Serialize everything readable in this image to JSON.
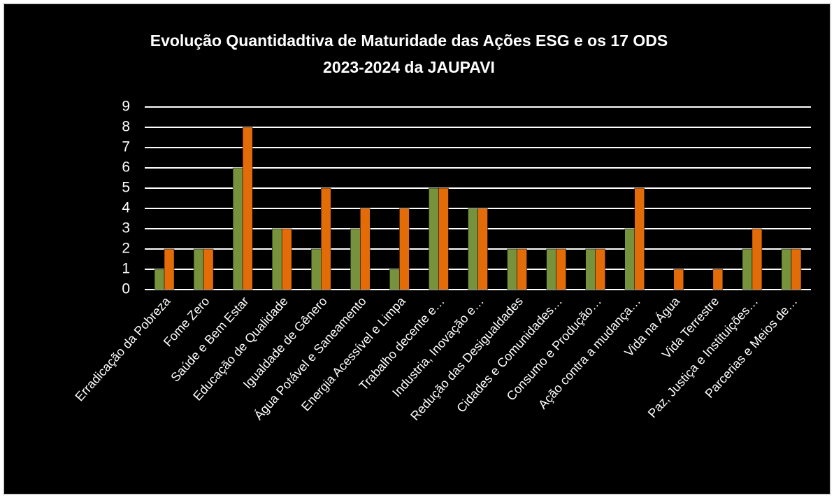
{
  "chart_data": {
    "type": "bar",
    "title": [
      "Evolução Quantidadtiva de Maturidade das Ações ESG e os 17 ODS",
      "2023-2024 da JAUPAVI"
    ],
    "categories": [
      "Erradicação da Pobreza",
      "Fome Zero",
      "Saúde e Bem Estar",
      "Educação de Qualidade",
      "Igualdade de Gênero",
      "Água Potável e Saneamento",
      "Energia Acessível e Limpa",
      "Trabalho decente e…",
      "Industria, Inovação e…",
      "Redução das Desigualdades",
      "Cidades e Comunidades…",
      "Consumo e Produção…",
      "Ação contra a mudança…",
      "Vida na Água",
      "Vida Terrestre",
      "Paz, Justiça e Instituições…",
      "Parcerias e Meios de…"
    ],
    "series": [
      {
        "color": "#76923c",
        "values": [
          1,
          2,
          6,
          3,
          2,
          3,
          1,
          5,
          4,
          2,
          2,
          2,
          3,
          0,
          0,
          2,
          2
        ]
      },
      {
        "color": "#e36c09",
        "values": [
          2,
          2,
          8,
          3,
          5,
          4,
          4,
          5,
          4,
          2,
          2,
          2,
          5,
          1,
          1,
          3,
          2
        ]
      }
    ],
    "ylim": [
      0,
      9
    ],
    "yticks": [
      0,
      1,
      2,
      3,
      4,
      5,
      6,
      7,
      8,
      9
    ],
    "grid": true
  }
}
